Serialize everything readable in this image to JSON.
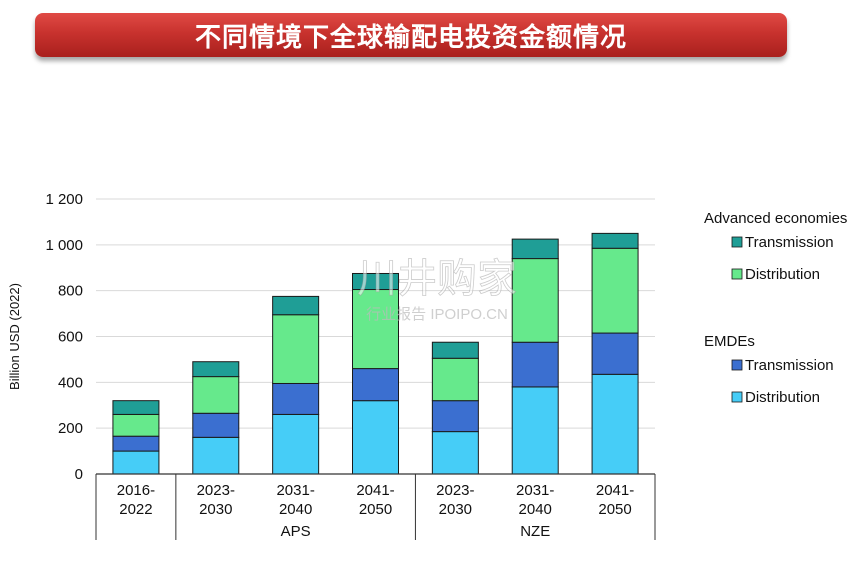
{
  "header": {
    "title": "不同情境下全球输配电投资金额情况"
  },
  "watermark": {
    "main": "川井购家",
    "sub": "行业报告 IPOIPO.CN"
  },
  "colors": {
    "ae_transmission": "#1f9e96",
    "ae_distribution": "#66e98c",
    "emde_transmission": "#3b6fd0",
    "emde_distribution": "#46cdf7",
    "banner": "#c8322e"
  },
  "chart_data": {
    "type": "bar",
    "stacked": true,
    "ylabel": "Billion USD (2022)",
    "ylim": [
      0,
      1200
    ],
    "yticks": [
      0,
      200,
      400,
      600,
      800,
      1000,
      1200
    ],
    "ytick_labels": [
      "0",
      "200",
      "400",
      "600",
      "800",
      "1 000",
      "1 200"
    ],
    "grid": true,
    "legend_position": "right",
    "categories": [
      "2016-2022",
      "2023-2030",
      "2031-2040",
      "2041-2050",
      "2023-2030",
      "2031-2040",
      "2041-2050"
    ],
    "category_label_lines": [
      [
        "2016-",
        "2022"
      ],
      [
        "2023-",
        "2030"
      ],
      [
        "2031-",
        "2040"
      ],
      [
        "2041-",
        "2050"
      ],
      [
        "2023-",
        "2030"
      ],
      [
        "2031-",
        "2040"
      ],
      [
        "2041-",
        "2050"
      ]
    ],
    "groups": [
      {
        "label": "",
        "start": 0,
        "end": 0
      },
      {
        "label": "APS",
        "start": 1,
        "end": 3
      },
      {
        "label": "NZE",
        "start": 4,
        "end": 6
      }
    ],
    "legend_groups": [
      {
        "title": "Advanced economies",
        "items": [
          "Transmission",
          "Distribution"
        ]
      },
      {
        "title": "EMDEs",
        "items": [
          "Transmission",
          "Distribution"
        ]
      }
    ],
    "series": [
      {
        "group": "EMDEs",
        "name": "Distribution",
        "values": [
          100,
          160,
          260,
          320,
          185,
          380,
          435
        ]
      },
      {
        "group": "EMDEs",
        "name": "Transmission",
        "values": [
          65,
          105,
          135,
          140,
          135,
          195,
          180
        ]
      },
      {
        "group": "Advanced economies",
        "name": "Distribution",
        "values": [
          95,
          160,
          300,
          345,
          185,
          365,
          370
        ]
      },
      {
        "group": "Advanced economies",
        "name": "Transmission",
        "values": [
          60,
          65,
          80,
          70,
          70,
          85,
          65
        ]
      }
    ]
  }
}
